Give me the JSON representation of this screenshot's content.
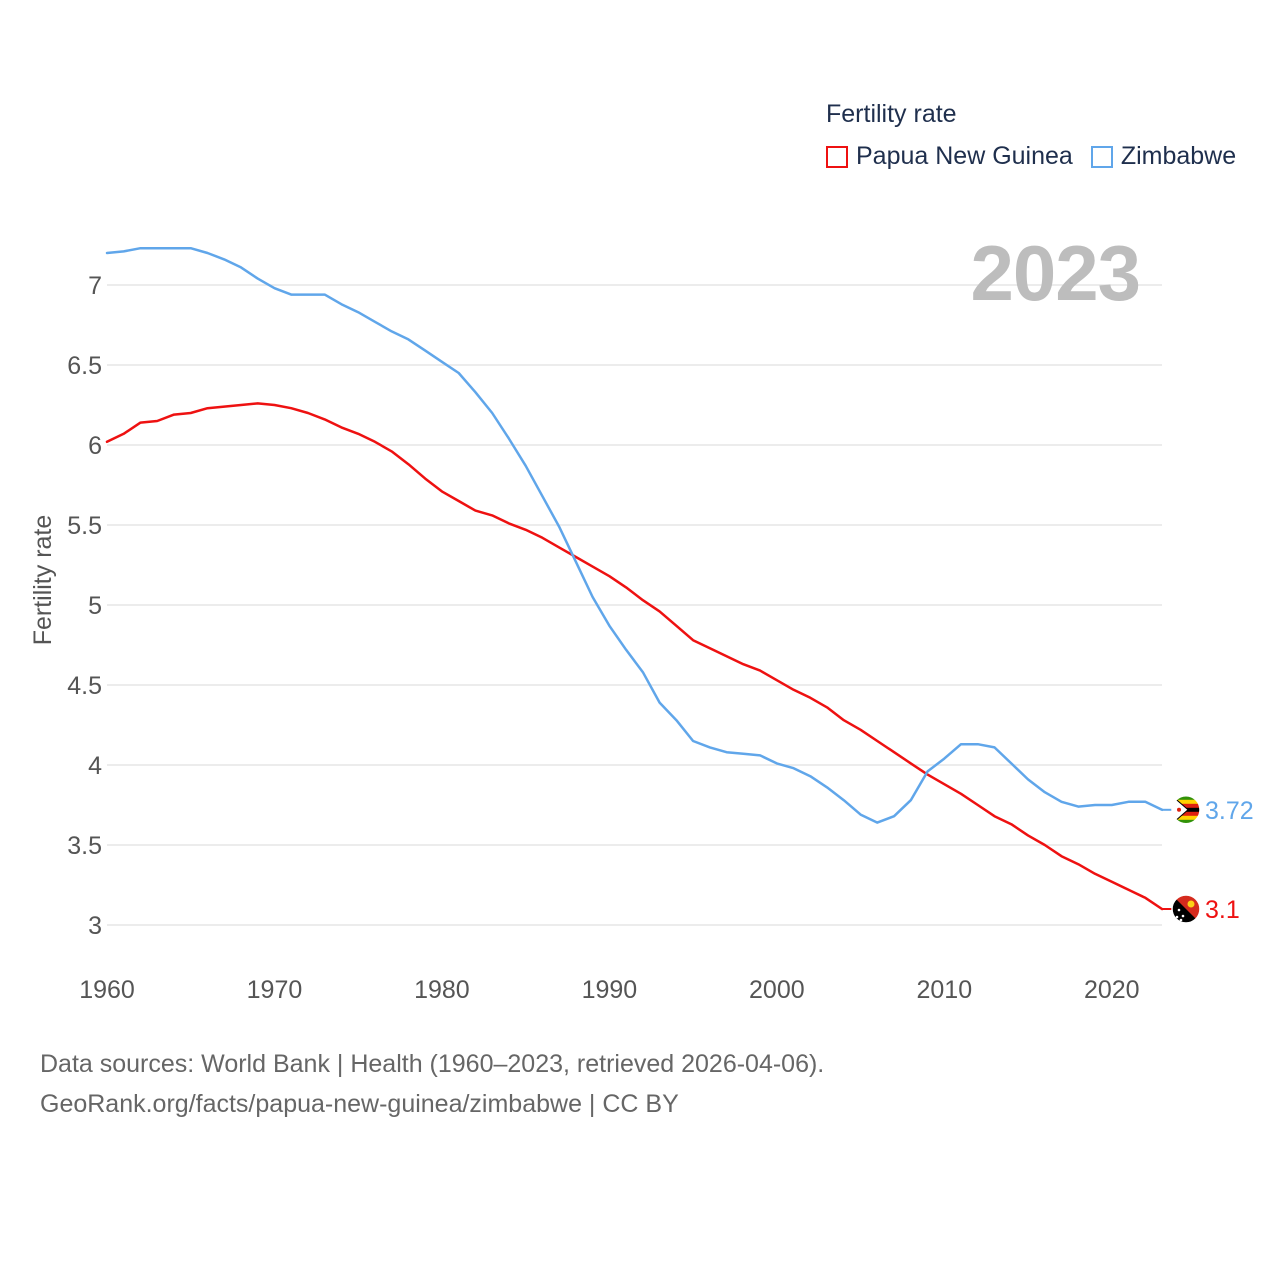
{
  "legend": {
    "title": "Fertility rate",
    "items": [
      {
        "label": "Papua New Guinea",
        "color": "#ee1111"
      },
      {
        "label": "Zimbabwe",
        "color": "#60a6ea"
      }
    ]
  },
  "year_label": "2023",
  "footer": {
    "line1": "Data sources: World Bank | Health (1960–2023, retrieved 2026-04-06).",
    "line2": "GeoRank.org/facts/papua-new-guinea/zimbabwe | CC BY"
  },
  "chart_data": {
    "type": "line",
    "title": "Fertility rate",
    "xlabel": "",
    "ylabel": "Fertility rate",
    "xlim": [
      1960,
      2023
    ],
    "ylim": [
      2.85,
      7.4
    ],
    "x_ticks": [
      1960,
      1970,
      1980,
      1990,
      2000,
      2010,
      2020
    ],
    "y_ticks": [
      3,
      3.5,
      4,
      4.5,
      5,
      5.5,
      6,
      6.5,
      7
    ],
    "grid": true,
    "x": [
      1960,
      1961,
      1962,
      1963,
      1964,
      1965,
      1966,
      1967,
      1968,
      1969,
      1970,
      1971,
      1972,
      1973,
      1974,
      1975,
      1976,
      1977,
      1978,
      1979,
      1980,
      1981,
      1982,
      1983,
      1984,
      1985,
      1986,
      1987,
      1988,
      1989,
      1990,
      1991,
      1992,
      1993,
      1994,
      1995,
      1996,
      1997,
      1998,
      1999,
      2000,
      2001,
      2002,
      2003,
      2004,
      2005,
      2006,
      2007,
      2008,
      2009,
      2010,
      2011,
      2012,
      2013,
      2014,
      2015,
      2016,
      2017,
      2018,
      2019,
      2020,
      2021,
      2022,
      2023
    ],
    "series": [
      {
        "name": "Papua New Guinea",
        "color": "#ee1111",
        "end_label": "3.1",
        "values": [
          6.02,
          6.07,
          6.14,
          6.15,
          6.19,
          6.2,
          6.23,
          6.24,
          6.25,
          6.26,
          6.25,
          6.23,
          6.2,
          6.16,
          6.11,
          6.07,
          6.02,
          5.96,
          5.88,
          5.79,
          5.71,
          5.65,
          5.59,
          5.56,
          5.51,
          5.47,
          5.42,
          5.36,
          5.3,
          5.24,
          5.18,
          5.11,
          5.03,
          4.96,
          4.87,
          4.78,
          4.73,
          4.68,
          4.63,
          4.59,
          4.53,
          4.47,
          4.42,
          4.36,
          4.28,
          4.22,
          4.15,
          4.08,
          4.01,
          3.94,
          3.88,
          3.82,
          3.75,
          3.68,
          3.63,
          3.56,
          3.5,
          3.43,
          3.38,
          3.32,
          3.27,
          3.22,
          3.17,
          3.1
        ]
      },
      {
        "name": "Zimbabwe",
        "color": "#60a6ea",
        "end_label": "3.72",
        "values": [
          7.2,
          7.21,
          7.23,
          7.23,
          7.23,
          7.23,
          7.2,
          7.16,
          7.11,
          7.04,
          6.98,
          6.94,
          6.94,
          6.94,
          6.88,
          6.83,
          6.77,
          6.71,
          6.66,
          6.59,
          6.52,
          6.45,
          6.33,
          6.2,
          6.04,
          5.87,
          5.68,
          5.49,
          5.27,
          5.05,
          4.87,
          4.72,
          4.58,
          4.39,
          4.28,
          4.15,
          4.11,
          4.08,
          4.07,
          4.06,
          4.01,
          3.98,
          3.93,
          3.86,
          3.78,
          3.69,
          3.64,
          3.68,
          3.78,
          3.96,
          4.04,
          4.13,
          4.13,
          4.11,
          4.01,
          3.91,
          3.83,
          3.77,
          3.74,
          3.75,
          3.75,
          3.77,
          3.77,
          3.72
        ]
      }
    ]
  }
}
